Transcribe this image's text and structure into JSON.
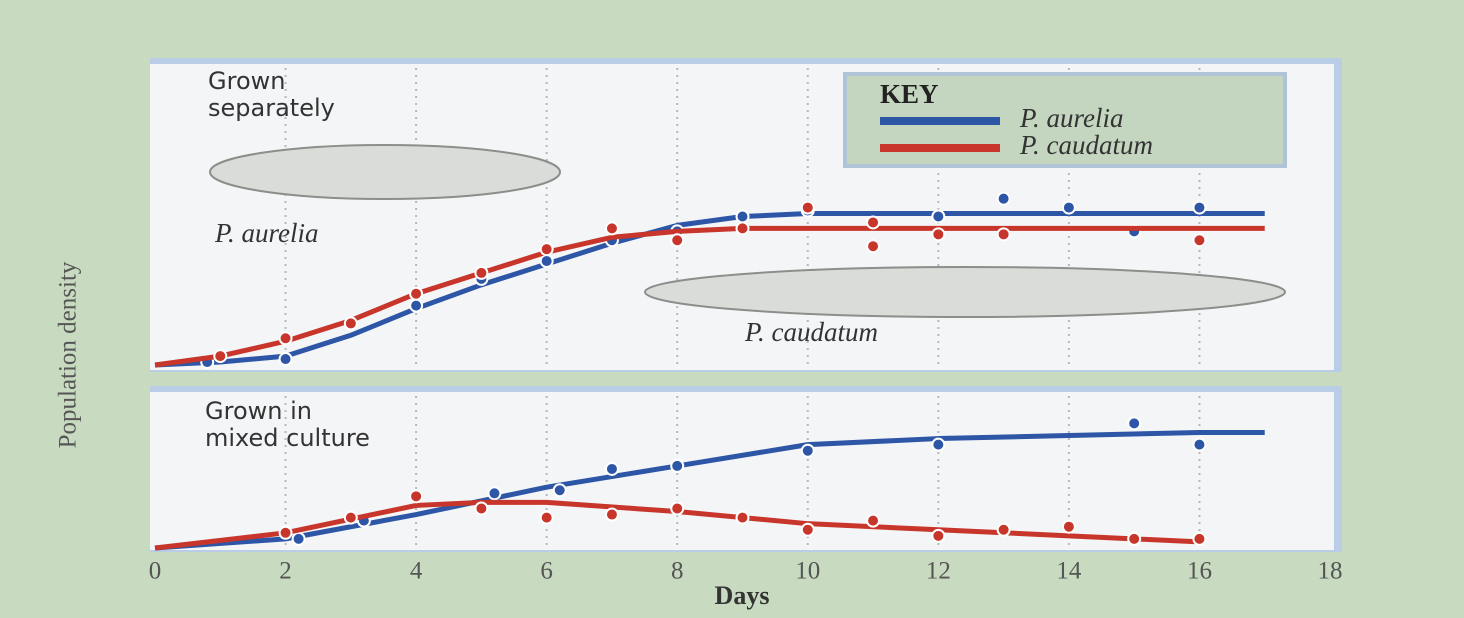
{
  "chart_data": [
    {
      "type": "scatter-fit",
      "title": "Grown separately",
      "ylabel": "Population density",
      "legend_title": "KEY",
      "legend": "top-right",
      "annotations": [
        "P. aurelia",
        "P. caudatum"
      ],
      "ylim": [
        0,
        100
      ],
      "series": [
        {
          "name": "P. aurelia",
          "color": "#2e56a6",
          "x": [
            0.8,
            2,
            4,
            5,
            6,
            7,
            8,
            9,
            10,
            12,
            13,
            14,
            15,
            16
          ],
          "values": [
            1,
            2,
            20,
            29,
            35,
            42,
            45,
            50,
            52,
            50,
            56,
            53,
            45,
            53
          ],
          "fit_x": [
            0,
            1,
            2,
            3,
            4,
            5,
            6,
            7,
            8,
            9,
            10,
            12,
            14,
            16,
            17
          ],
          "fit_values": [
            0,
            1,
            3,
            10,
            19,
            27,
            34,
            41,
            47,
            50,
            51,
            51,
            51,
            51,
            51
          ]
        },
        {
          "name": "P. caudatum",
          "color": "#c8352b",
          "x": [
            1,
            2,
            3,
            4,
            5,
            6,
            7,
            8,
            9,
            10,
            11,
            11,
            12,
            13,
            16
          ],
          "values": [
            3,
            9,
            14,
            24,
            31,
            39,
            46,
            42,
            46,
            53,
            48,
            40,
            44,
            44,
            42
          ],
          "fit_x": [
            0,
            1,
            2,
            3,
            4,
            5,
            6,
            7,
            8,
            9,
            10,
            12,
            14,
            16,
            17
          ],
          "fit_values": [
            0,
            3,
            8,
            15,
            24,
            31,
            38,
            43,
            45,
            46,
            46,
            46,
            46,
            46,
            46
          ]
        }
      ]
    },
    {
      "type": "scatter-fit",
      "title": "Grown in mixed culture",
      "xlabel": "Days",
      "xlim": [
        0,
        18
      ],
      "xticks": [
        0,
        2,
        4,
        6,
        8,
        10,
        12,
        14,
        16,
        18
      ],
      "ylim": [
        0,
        50
      ],
      "series": [
        {
          "color": "#2e56a6",
          "x": [
            2.2,
            3.2,
            5.2,
            6.2,
            7,
            8,
            10,
            12,
            15,
            16
          ],
          "values": [
            3,
            9,
            18,
            19,
            26,
            27,
            32,
            34,
            41,
            34
          ],
          "fit_x": [
            0,
            2,
            4,
            6,
            8,
            10,
            12,
            14,
            16,
            17
          ],
          "fit_values": [
            0,
            3,
            11,
            20,
            27,
            34,
            36,
            37,
            38,
            38
          ]
        },
        {
          "color": "#c8352b",
          "x": [
            2,
            3,
            4,
            5,
            6,
            7,
            8,
            9,
            10,
            11,
            12,
            13,
            14,
            15,
            16
          ],
          "values": [
            5,
            10,
            17,
            13,
            10,
            11,
            13,
            10,
            6,
            9,
            4,
            6,
            7,
            3,
            3
          ],
          "fit_x": [
            0,
            2,
            4,
            5,
            6,
            8,
            10,
            12,
            14,
            16
          ],
          "fit_values": [
            0,
            5,
            14,
            15,
            15,
            12,
            8,
            6,
            4,
            2
          ]
        }
      ]
    }
  ]
}
